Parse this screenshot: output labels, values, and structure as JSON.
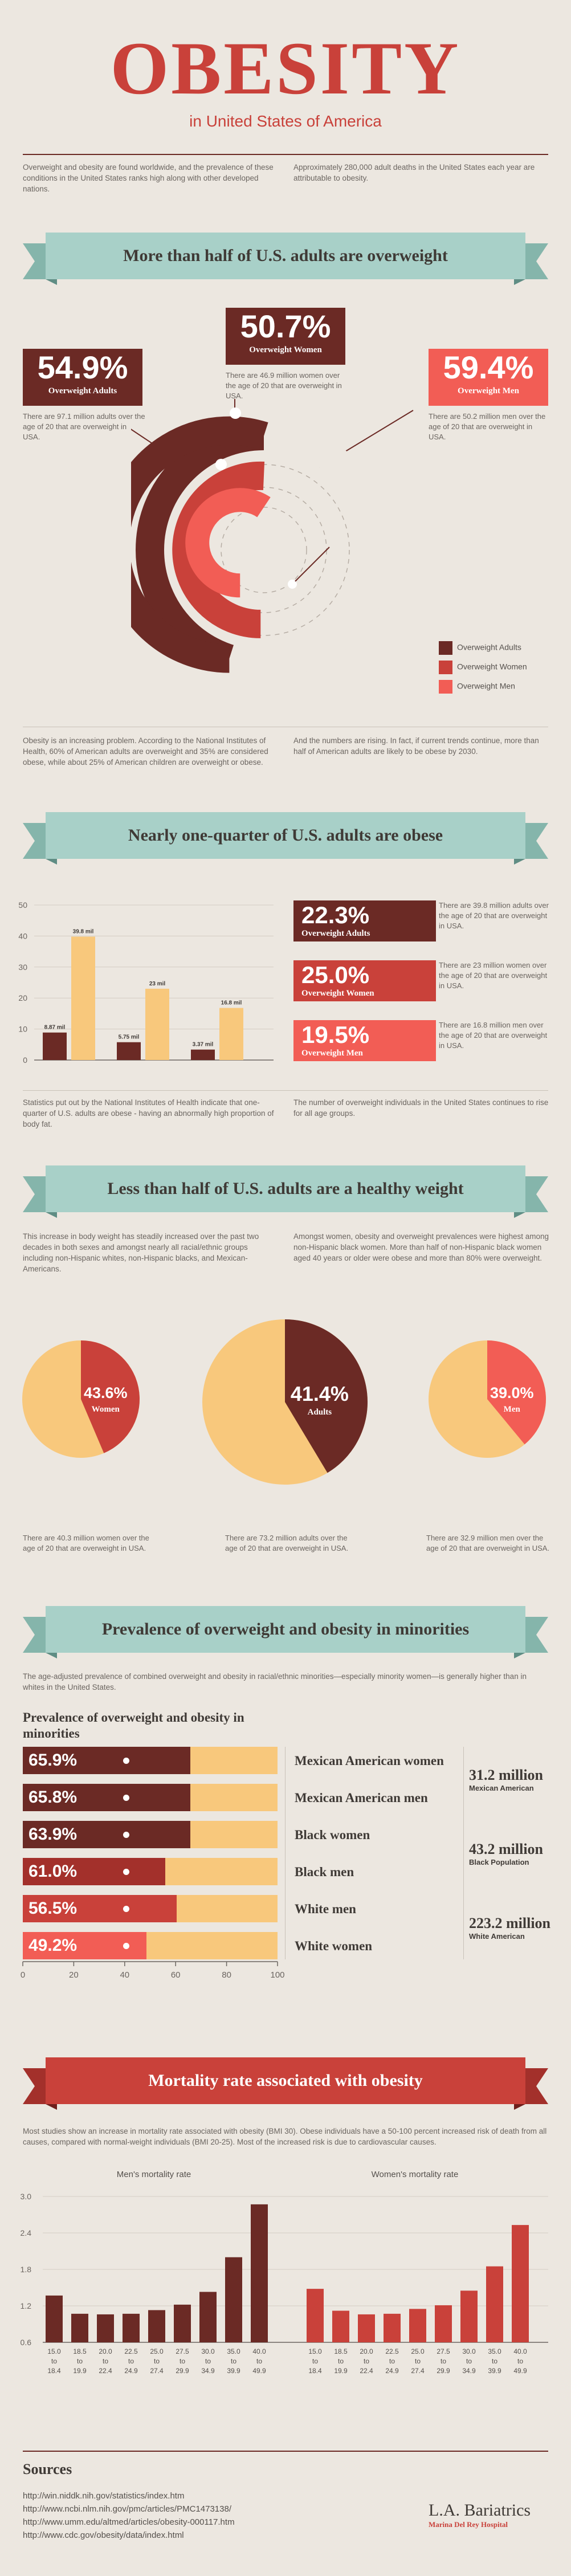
{
  "header": {
    "title": "OBESITY",
    "subtitle": "in United States of America",
    "intro_left": "Overweight and obesity are found worldwide, and the prevalence of these conditions in the United States ranks high along with other developed nations.",
    "intro_right": "Approximately 280,000 adult deaths in the United States each year are attributable to obesity."
  },
  "section1": {
    "banner": "More than half of U.S. adults are overweight",
    "women_pct": "50.7%",
    "women_label": "Overweight Women",
    "women_text": "There are 46.9 million women over the age of 20 that are overweight in USA.",
    "adults_pct": "54.9%",
    "adults_label": "Overweight Adults",
    "adults_text": "There are 97.1 million adults over the age of 20 that are overweight in USA.",
    "men_pct": "59.4%",
    "men_label": "Overweight Men",
    "men_text": "There are 50.2 million men over the age of 20 that are overweight in USA.",
    "legend": [
      "Overweight Adults",
      "Overweight Women",
      "Overweight Men"
    ],
    "colors": {
      "adults": "#6b2a25",
      "women": "#c9413a",
      "men": "#f25d55"
    },
    "fractions": {
      "adults": 0.549,
      "women": 0.507,
      "men": 0.594
    },
    "para_left": "Obesity is an increasing problem. According to the National Institutes of Health, 60% of American adults are overweight and 35% are considered obese, while about 25% of American children are overweight or obese.",
    "para_right": "And the numbers are rising. In fact, if current trends continue, more than half of American adults are likely to be obese by 2030."
  },
  "section2": {
    "banner": "Nearly one-quarter of U.S. adults are obese",
    "stats": [
      {
        "pct": "22.3%",
        "label": "Overweight Adults",
        "text": "There are 39.8 million adults over the age of 20 that are overweight in USA."
      },
      {
        "pct": "25.0%",
        "label": "Overweight Women",
        "text": "There are 23 million women over the age of 20 that are overweight in USA."
      },
      {
        "pct": "19.5%",
        "label": "Overweight Men",
        "text": "There are 16.8 million men over the age of 20 that are overweight in USA."
      }
    ],
    "para_left": "Statistics put out by the National Institutes of Health indicate that one-quarter of U.S. adults are obese - having an abnormally high proportion of body fat.",
    "para_right": "The number of overweight individuals in the United States continues to rise for all age groups."
  },
  "section3": {
    "banner": "Less than half of U.S. adults are a healthy weight",
    "para_left": "This increase in body weight has steadily increased over the past two decades in both sexes and amongst nearly all racial/ethnic groups including non-Hispanic whites, non-Hispanic blacks, and Mexican-Americans.",
    "para_right": "Amongst women, obesity and overweight prevalences were highest among non-Hispanic black women. More than half of non-Hispanic black women aged 40 years or older were obese and more than 80% were overweight.",
    "pies": [
      {
        "pct": "43.6%",
        "label": "Women",
        "fraction": 0.436,
        "color": "#c9413a",
        "text": "There are 40.3 million women over the age of 20 that are overweight in USA."
      },
      {
        "pct": "41.4%",
        "label": "Adults",
        "fraction": 0.414,
        "color": "#6b2a25",
        "text": "There are 73.2 million adults over the age of 20 that are overweight in USA."
      },
      {
        "pct": "39.0%",
        "label": "Men",
        "fraction": 0.39,
        "color": "#f25d55",
        "text": "There are 32.9 million men over the age of 20 that are overweight in USA."
      }
    ]
  },
  "section4": {
    "banner": "Prevalence of overweight and obesity in minorities",
    "para": "The age-adjusted prevalence of combined overweight and obesity in racial/ethnic minorities—especially minority women—is generally higher than in whites in the United States.",
    "chart_title": "Prevalence of overweight and obesity in minorities",
    "rows": [
      {
        "pct": "65.9%",
        "label": "Mexican American women",
        "color": "#6b2a25"
      },
      {
        "pct": "65.8%",
        "label": "Mexican American men",
        "color": "#6b2a25"
      },
      {
        "pct": "63.9%",
        "label": "Black women",
        "color": "#6b2a25"
      },
      {
        "pct": "61.0%",
        "label": "Black men",
        "color": "#a3302b"
      },
      {
        "pct": "56.5%",
        "label": "White men",
        "color": "#c9413a"
      },
      {
        "pct": "49.2%",
        "label": "White women",
        "color": "#f25d55"
      }
    ],
    "populations": [
      {
        "big": "31.2 million",
        "small": "Mexican American"
      },
      {
        "big": "43.2 million",
        "small": "Black Population"
      },
      {
        "big": "223.2 million",
        "small": "White American"
      }
    ]
  },
  "section5": {
    "banner": "Mortality rate associated with obesity",
    "para": "Most studies show an increase in mortality rate associated with obesity (BMI   30). Obese individuals have a 50-100 percent increased risk of death from all causes, compared with normal-weight individuals (BMI 20-25). Most of the increased risk is due to cardiovascular causes."
  },
  "chart_data": [
    {
      "type": "bar",
      "categories": [
        "Overweight Adults",
        "Overweight Women",
        "Overweight Men"
      ],
      "series": [
        {
          "values": [
            8.87,
            5.75,
            3.37
          ]
        },
        {
          "values": [
            39.8,
            23,
            16.8
          ]
        }
      ],
      "data_labels": [
        [
          "8.87 mil",
          "5.75 mil",
          "3.37 mil"
        ],
        [
          "39.8 mil",
          "23 mil",
          "16.8 mil"
        ]
      ],
      "yticks": [
        "0",
        "10",
        "20",
        "30",
        "40",
        "50"
      ],
      "ylim": [
        0,
        50
      ],
      "colors": [
        "#6b2a25",
        "#f8c87c"
      ]
    },
    {
      "type": "bar",
      "categories": [
        "Mexican American women",
        "Mexican American men",
        "Black women",
        "Black men",
        "White men",
        "White women"
      ],
      "values": [
        65.9,
        65.8,
        63.9,
        61.0,
        56.5,
        49.2
      ],
      "xticks": [
        "0",
        "20",
        "40",
        "60",
        "80",
        "100"
      ],
      "xlim": [
        0,
        100
      ]
    },
    {
      "type": "bar",
      "title": "Men's mortality rate",
      "categories": [
        "15.0 to 18.4",
        "18.5 to 19.9",
        "20.0 to 22.4",
        "22.5 to 24.9",
        "25.0 to 27.4",
        "27.5 to 29.9",
        "30.0 to 34.9",
        "35.0 to 39.9",
        "40.0 to 49.9"
      ],
      "values": [
        1.37,
        1.07,
        1.06,
        1.07,
        1.13,
        1.22,
        1.43,
        2.0,
        2.87
      ],
      "yticks": [
        "0.6",
        "1.2",
        "1.8",
        "2.4",
        "3.0"
      ],
      "ylim": [
        0.6,
        3.0
      ],
      "color": "#6b2a25"
    },
    {
      "type": "bar",
      "title": "Women's mortality rate",
      "categories": [
        "15.0 to 18.4",
        "18.5 to 19.9",
        "20.0 to 22.4",
        "22.5 to 24.9",
        "25.0 to 27.4",
        "27.5 to 29.9",
        "30.0 to 34.9",
        "35.0 to 39.9",
        "40.0 to 49.9"
      ],
      "values": [
        1.48,
        1.12,
        1.06,
        1.07,
        1.15,
        1.21,
        1.45,
        1.85,
        2.53
      ],
      "ylim": [
        0.6,
        3.0
      ],
      "color": "#c9413a"
    }
  ],
  "sources": {
    "title": "Sources",
    "links": [
      "http://win.niddk.nih.gov/statistics/index.htm",
      "http://www.ncbi.nlm.nih.gov/pmc/articles/PMC1473138/",
      "http://www.umm.edu/altmed/articles/obesity-000117.htm",
      "http://www.cdc.gov/obesity/data/index.html"
    ],
    "brand": "L.A. Bariatrics",
    "brand_sub": "Marina Del Rey Hospital"
  }
}
